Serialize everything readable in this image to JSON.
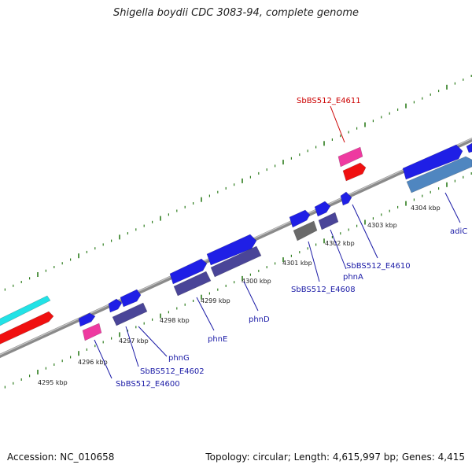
{
  "title": "Shigella boydii CDC 3083-94, complete genome",
  "footer": {
    "accession": "Accession: NC_010658",
    "summary": "Topology: circular; Length: 4,615,997 bp; Genes: 4,415"
  },
  "colors": {
    "backbone": "#8a8a8a",
    "tick": "#2e7d1e",
    "gene_blue": "#1f1fe6",
    "gene_navy": "#4a4598",
    "gene_pink": "#ee3aa0",
    "gene_red": "#f01010",
    "gene_cyan": "#22e2e6",
    "gene_steel": "#4f86c0",
    "gene_gray": "#6a6a6a",
    "label_blue": "#1a1aa6",
    "label_red": "#cc0000"
  },
  "scale": {
    "tick_labels": [
      "4295 kbp",
      "4296 kbp",
      "4297 kbp",
      "4298 kbp",
      "4299 kbp",
      "4300 kbp",
      "4301 kbp",
      "4302 kbp",
      "4303 kbp",
      "4304 kbp"
    ]
  },
  "gene_labels": [
    {
      "id": "SbBS512_E4600",
      "text": "SbBS512_E4600"
    },
    {
      "id": "SbBS512_E4602",
      "text": "SbBS512_E4602"
    },
    {
      "id": "phnG",
      "text": "phnG"
    },
    {
      "id": "phnE",
      "text": "phnE"
    },
    {
      "id": "phnD",
      "text": "phnD"
    },
    {
      "id": "SbBS512_E4608",
      "text": "SbBS512_E4608"
    },
    {
      "id": "phnA",
      "text": "phnA"
    },
    {
      "id": "SbBS512_E4610",
      "text": "SbBS512_E4610"
    },
    {
      "id": "adiC",
      "text": "adiC"
    },
    {
      "id": "SbBS512_E4611",
      "text": "SbBS512_E4611"
    }
  ]
}
